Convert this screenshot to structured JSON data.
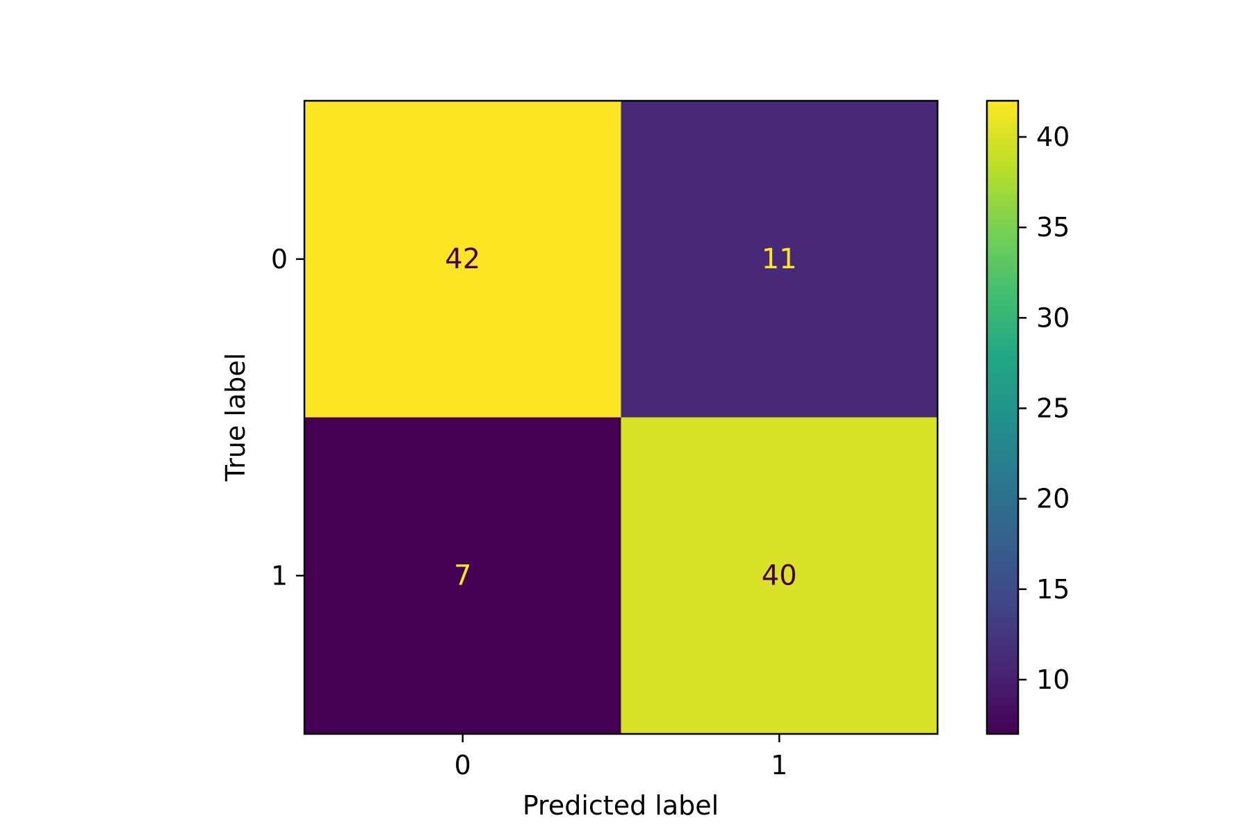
{
  "chart_data": {
    "type": "heatmap",
    "title": "",
    "xlabel": "Predicted label",
    "ylabel": "True label",
    "x_categories": [
      "0",
      "1"
    ],
    "y_categories": [
      "0",
      "1"
    ],
    "matrix": [
      [
        42,
        11
      ],
      [
        7,
        40
      ]
    ],
    "colormap": "viridis",
    "colorbar": {
      "range": [
        7,
        42
      ],
      "ticks": [
        10,
        15,
        20,
        25,
        30,
        35,
        40
      ],
      "tick_labels": [
        "10",
        "15",
        "20",
        "25",
        "30",
        "35",
        "40"
      ]
    },
    "text_colors": {
      "on_light": "#440154",
      "on_dark": "#fde725"
    }
  }
}
